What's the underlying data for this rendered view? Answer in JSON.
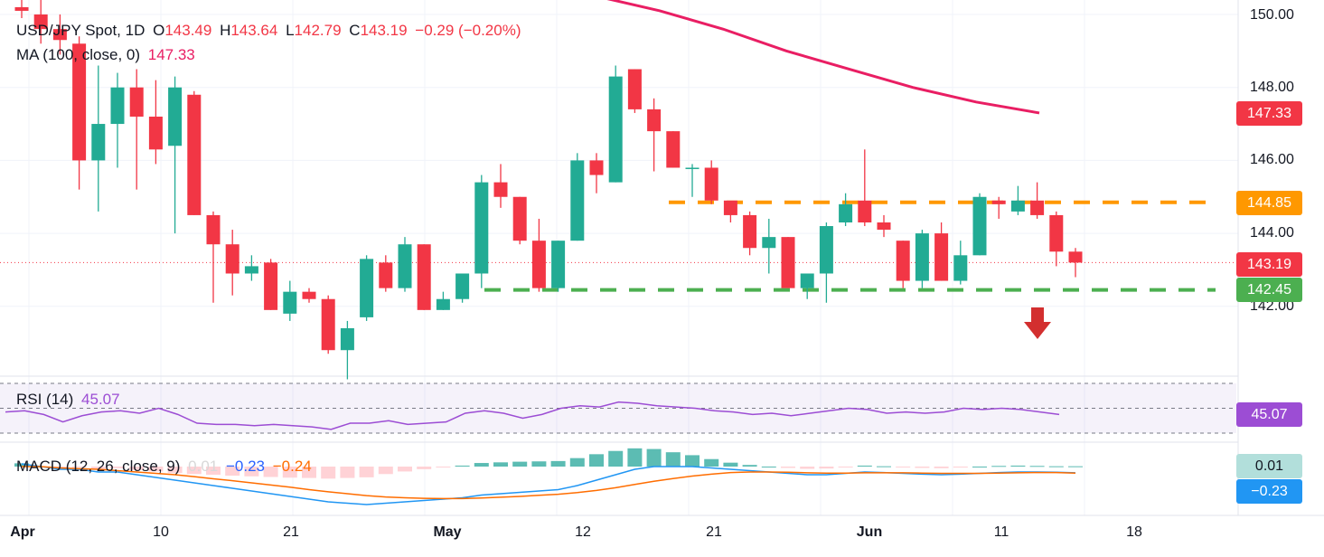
{
  "legend": {
    "symbol": "USD/JPY Spot, 1D",
    "open_label": "O",
    "open": "143.49",
    "high_label": "H",
    "high": "143.64",
    "low_label": "L",
    "low": "142.79",
    "close_label": "C",
    "close": "143.19",
    "change": "−0.29 (−0.20%)",
    "ma_label": "MA (100, close, 0)",
    "ma_value": "147.33",
    "rsi_label": "RSI (14)",
    "rsi_value": "45.07",
    "macd_label": "MACD (12, 26, close, 9)",
    "macd_hist": "0.01",
    "macd_line": "−0.23",
    "macd_signal": "−0.24"
  },
  "price_axis": [
    "150.00",
    "148.00",
    "146.00",
    "144.00",
    "142.00"
  ],
  "tags": {
    "ma": {
      "text": "147.33",
      "color": "#f23645"
    },
    "resistance": {
      "text": "144.85",
      "color": "#ff9800"
    },
    "last": {
      "text": "143.19",
      "color": "#f23645"
    },
    "support": {
      "text": "142.45",
      "color": "#4caf50"
    },
    "rsi": {
      "text": "45.07",
      "color": "#9c4dd4"
    },
    "macd_hist": {
      "text": "0.01",
      "color": "#b2dfdb"
    },
    "macd_line": {
      "text": "−0.23",
      "color": "#2196f3"
    }
  },
  "time_axis": [
    "Apr",
    "10",
    "21",
    "May",
    "12",
    "21",
    "Jun",
    "11",
    "18"
  ],
  "colors": {
    "up": "#22ab94",
    "down": "#f23645",
    "ma": "#e91e63",
    "rsi": "#9c4dd4",
    "macd": "#2196f3",
    "signal": "#ff6d00"
  },
  "chart_data": {
    "type": "candlestick",
    "title": "USD/JPY Spot, 1D",
    "ylim": [
      140.2,
      150.2
    ],
    "ohlc": [
      [
        150.2,
        150.4,
        149.9,
        150.1
      ],
      [
        150.0,
        150.4,
        149.2,
        149.6
      ],
      [
        149.6,
        150.0,
        148.9,
        149.3
      ],
      [
        149.2,
        149.4,
        145.2,
        146.0
      ],
      [
        146.0,
        148.6,
        144.6,
        147.0
      ],
      [
        147.0,
        148.4,
        145.8,
        148.0
      ],
      [
        148.0,
        148.5,
        145.2,
        147.2
      ],
      [
        147.2,
        148.2,
        145.9,
        146.3
      ],
      [
        146.4,
        148.3,
        144.0,
        148.0
      ],
      [
        147.8,
        147.9,
        144.5,
        144.5
      ],
      [
        144.5,
        144.6,
        142.1,
        143.7
      ],
      [
        143.7,
        144.1,
        142.3,
        142.9
      ],
      [
        142.9,
        143.4,
        142.7,
        143.1
      ],
      [
        143.2,
        143.3,
        141.9,
        141.9
      ],
      [
        141.8,
        142.7,
        141.6,
        142.4
      ],
      [
        142.4,
        142.5,
        142.1,
        142.2
      ],
      [
        142.2,
        142.3,
        140.7,
        140.8
      ],
      [
        140.8,
        141.6,
        140.0,
        141.4
      ],
      [
        141.7,
        143.4,
        141.6,
        143.3
      ],
      [
        143.2,
        143.4,
        142.4,
        142.5
      ],
      [
        142.5,
        143.9,
        142.4,
        143.7
      ],
      [
        143.7,
        143.7,
        141.9,
        141.9
      ],
      [
        141.9,
        142.4,
        141.9,
        142.2
      ],
      [
        142.2,
        142.9,
        142.1,
        142.9
      ],
      [
        142.9,
        145.6,
        142.5,
        145.4
      ],
      [
        145.4,
        145.9,
        144.7,
        145.0
      ],
      [
        145.0,
        145.0,
        143.7,
        143.8
      ],
      [
        143.8,
        144.4,
        142.4,
        142.5
      ],
      [
        142.5,
        143.8,
        142.4,
        143.8
      ],
      [
        143.8,
        146.2,
        143.8,
        146.0
      ],
      [
        146.0,
        146.2,
        145.1,
        145.6
      ],
      [
        145.4,
        148.6,
        145.4,
        148.3
      ],
      [
        148.5,
        148.5,
        147.3,
        147.4
      ],
      [
        147.4,
        147.7,
        145.7,
        146.8
      ],
      [
        146.8,
        146.8,
        145.8,
        145.8
      ],
      [
        145.8,
        145.9,
        145.0,
        145.8
      ],
      [
        145.8,
        146.0,
        144.8,
        144.9
      ],
      [
        144.9,
        144.8,
        144.3,
        144.5
      ],
      [
        144.5,
        144.6,
        143.4,
        143.6
      ],
      [
        143.6,
        144.4,
        142.9,
        143.9
      ],
      [
        143.9,
        143.9,
        142.5,
        142.5
      ],
      [
        142.5,
        142.9,
        142.2,
        142.9
      ],
      [
        142.9,
        144.3,
        142.1,
        144.2
      ],
      [
        144.3,
        145.1,
        144.2,
        144.8
      ],
      [
        144.9,
        146.3,
        144.2,
        144.3
      ],
      [
        144.3,
        144.5,
        143.9,
        144.1
      ],
      [
        143.8,
        143.8,
        142.5,
        142.7
      ],
      [
        142.7,
        144.1,
        142.5,
        144.0
      ],
      [
        144.0,
        144.3,
        142.7,
        142.7
      ],
      [
        142.7,
        143.8,
        142.6,
        143.4
      ],
      [
        143.4,
        145.1,
        143.4,
        145.0
      ],
      [
        144.9,
        145.0,
        144.4,
        144.8
      ],
      [
        144.6,
        145.3,
        144.5,
        144.9
      ],
      [
        144.9,
        145.4,
        144.4,
        144.5
      ],
      [
        144.5,
        144.6,
        143.1,
        143.5
      ],
      [
        143.5,
        143.6,
        142.8,
        143.2
      ]
    ],
    "ma_100": [
      150.5,
      150.1,
      149.6,
      149.0,
      148.5,
      148.0,
      147.6,
      147.3
    ],
    "resistance_level": 144.85,
    "support_level": 142.45,
    "rsi": [
      47,
      48,
      45,
      39,
      44,
      47,
      48,
      46,
      50,
      45,
      38,
      37,
      37,
      36,
      37,
      36,
      35,
      33,
      38,
      38,
      40,
      37,
      38,
      39,
      46,
      48,
      46,
      42,
      45,
      50,
      52,
      51,
      55,
      54,
      52,
      51,
      50,
      48,
      47,
      45,
      46,
      44,
      46,
      48,
      50,
      49,
      46,
      47,
      46,
      47,
      50,
      49,
      50,
      49,
      47,
      45
    ],
    "macd_line": [
      0.1,
      0.0,
      -0.1,
      -0.1,
      -0.2,
      -0.2,
      -0.3,
      -0.4,
      -0.5,
      -0.6,
      -0.7,
      -0.8,
      -0.9,
      -1.0,
      -1.1,
      -1.2,
      -1.3,
      -1.35,
      -1.4,
      -1.35,
      -1.3,
      -1.25,
      -1.2,
      -1.15,
      -1.05,
      -1.0,
      -0.95,
      -0.9,
      -0.85,
      -0.7,
      -0.5,
      -0.3,
      -0.1,
      0.0,
      0.0,
      0.0,
      -0.05,
      -0.1,
      -0.15,
      -0.2,
      -0.25,
      -0.3,
      -0.3,
      -0.25,
      -0.2,
      -0.22,
      -0.25,
      -0.28,
      -0.3,
      -0.28,
      -0.25,
      -0.22,
      -0.2,
      -0.2,
      -0.21,
      -0.23
    ],
    "macd_signal": [
      0.0,
      0.0,
      -0.05,
      -0.08,
      -0.1,
      -0.15,
      -0.2,
      -0.25,
      -0.3,
      -0.37,
      -0.45,
      -0.52,
      -0.6,
      -0.68,
      -0.76,
      -0.85,
      -0.93,
      -1.0,
      -1.07,
      -1.12,
      -1.15,
      -1.17,
      -1.18,
      -1.18,
      -1.16,
      -1.13,
      -1.1,
      -1.06,
      -1.02,
      -0.96,
      -0.88,
      -0.78,
      -0.66,
      -0.54,
      -0.44,
      -0.35,
      -0.28,
      -0.22,
      -0.2,
      -0.2,
      -0.21,
      -0.23,
      -0.24,
      -0.24,
      -0.23,
      -0.23,
      -0.23,
      -0.24,
      -0.25,
      -0.25,
      -0.25,
      -0.24,
      -0.23,
      -0.22,
      -0.22,
      -0.24
    ]
  }
}
